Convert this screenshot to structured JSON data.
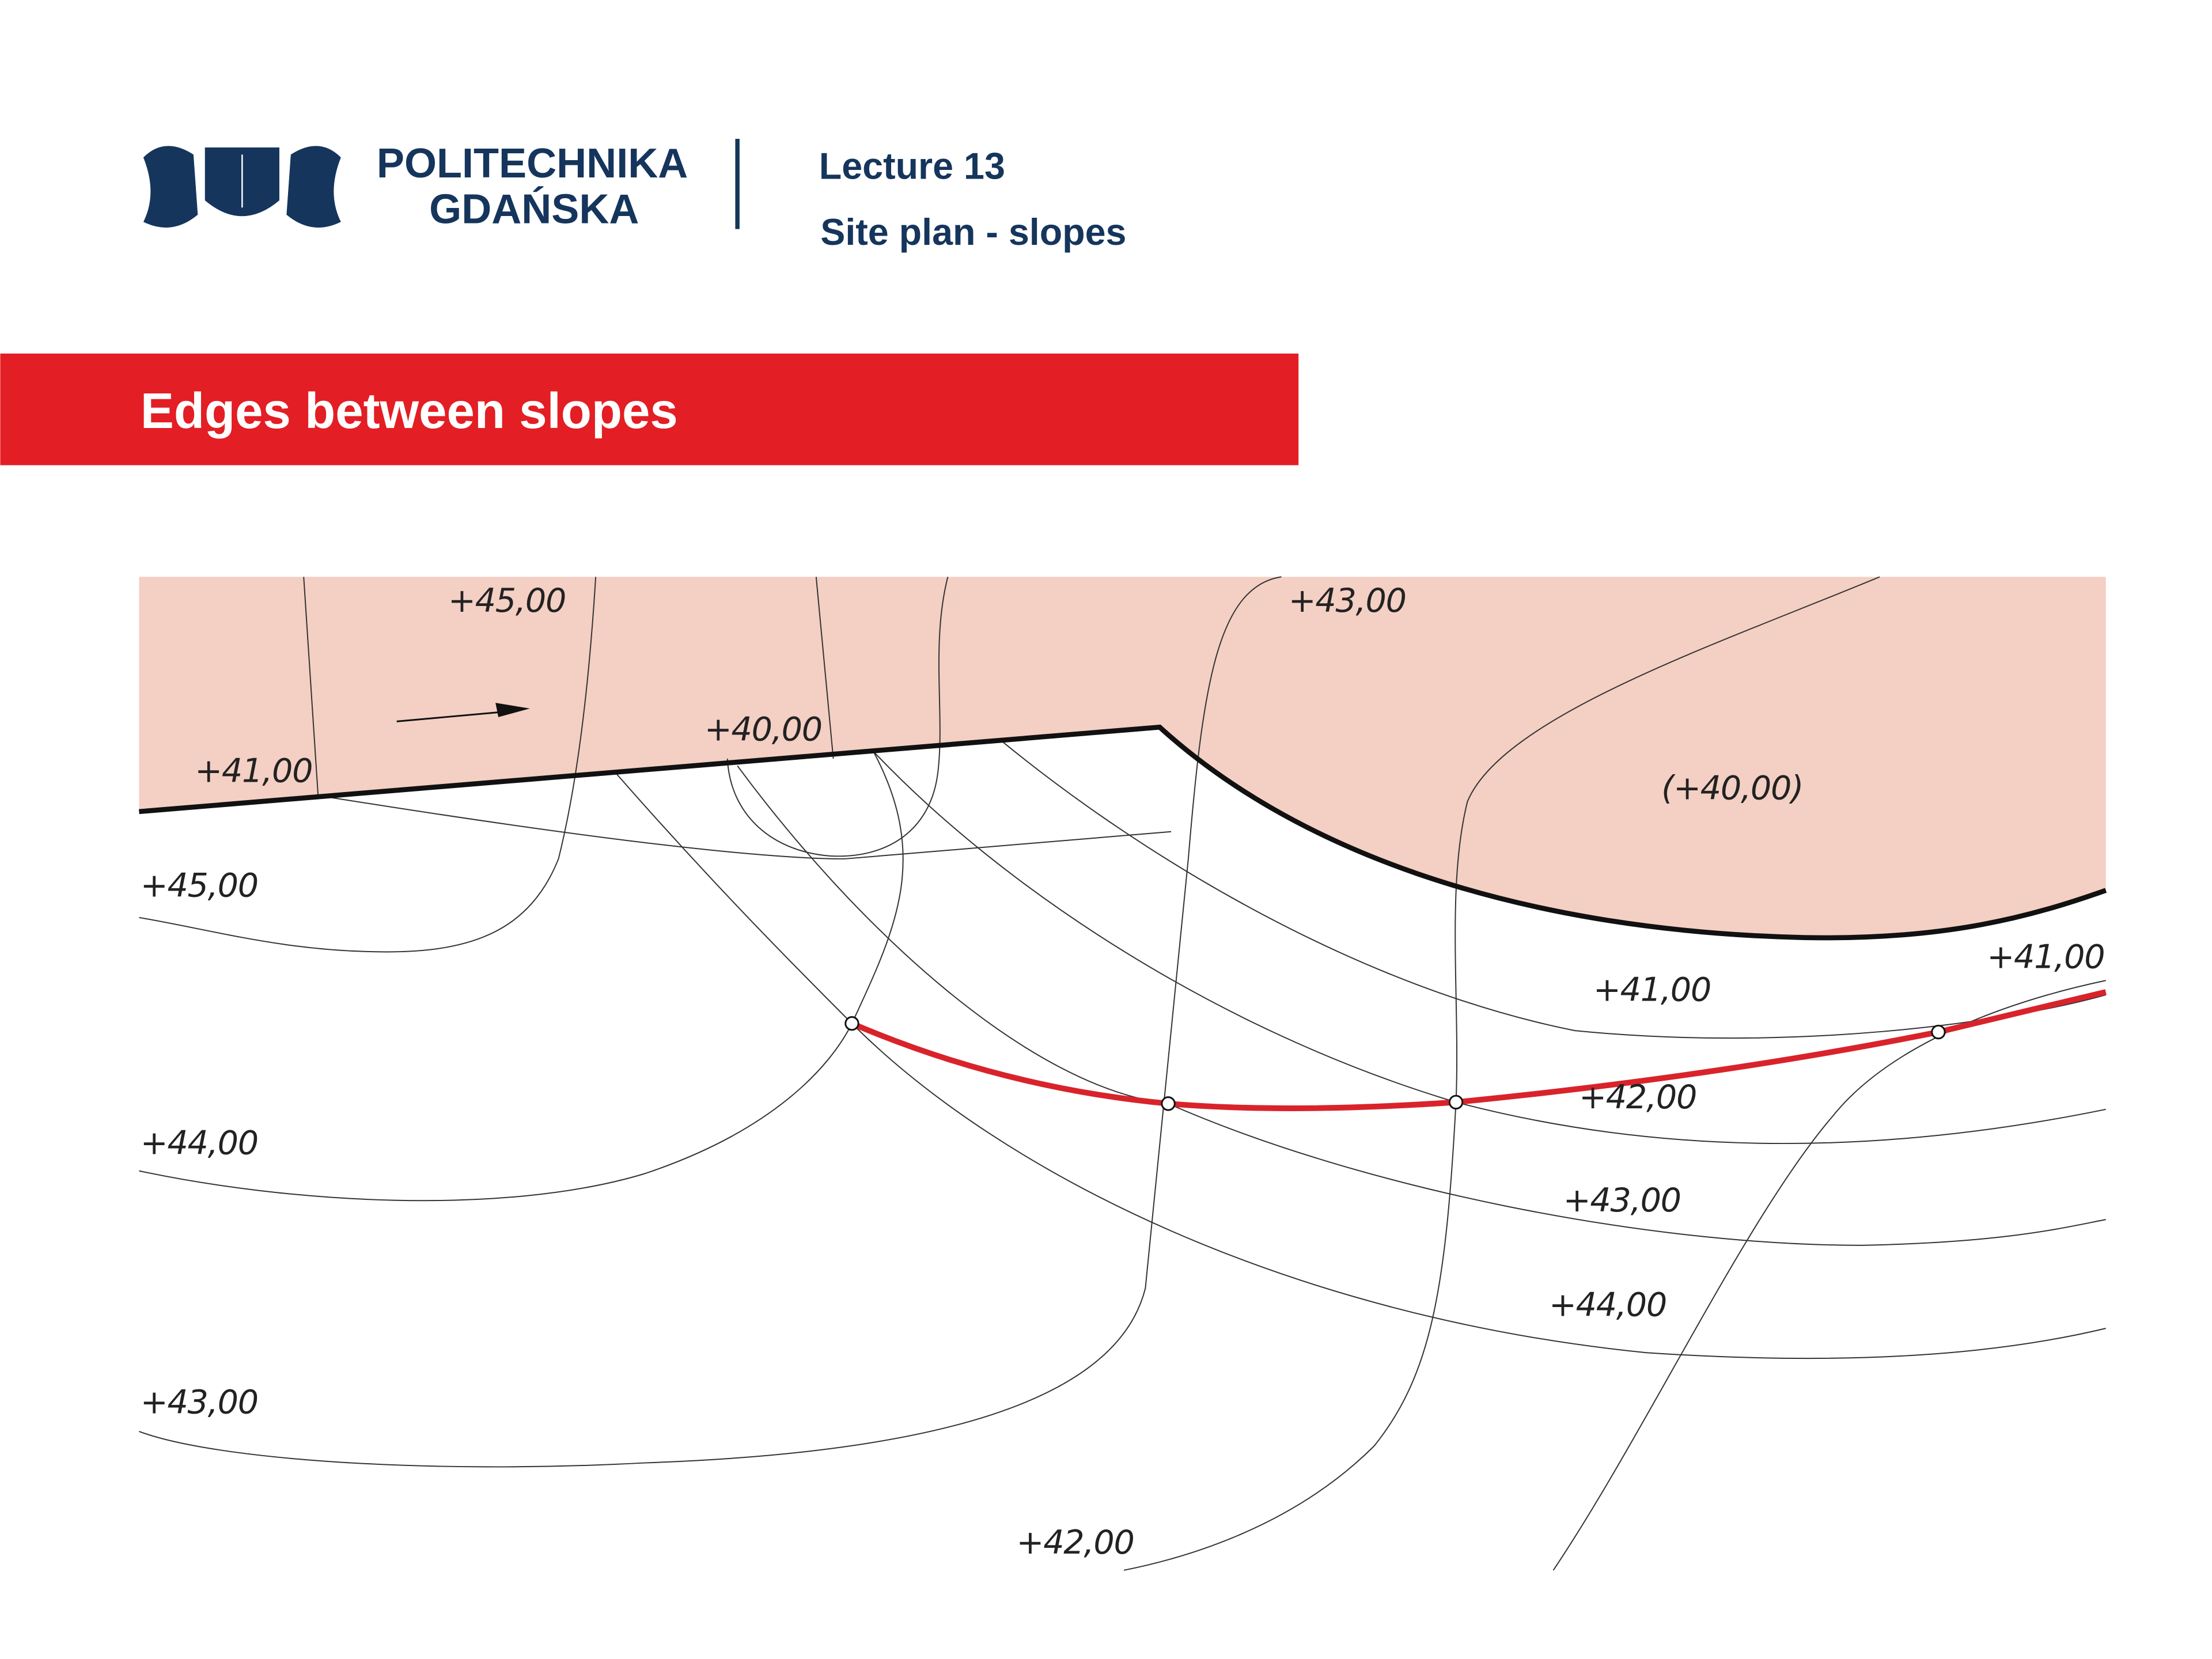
{
  "header": {
    "logo_line1": "POLITECHNIKA",
    "logo_line2": "GDAŃSKA",
    "lecture": "Lecture 13",
    "topic": "Site plan - slopes"
  },
  "section_title": "Edges between slopes",
  "labels": [
    "+45,00",
    "+43,00",
    "+40,00",
    "+41,00",
    "(+40,00)",
    "+45,00",
    "+41,00",
    "+41,00",
    "+42,00",
    "+44,00",
    "+43,00",
    "+44,00",
    "+43,00",
    "+42,00"
  ]
}
